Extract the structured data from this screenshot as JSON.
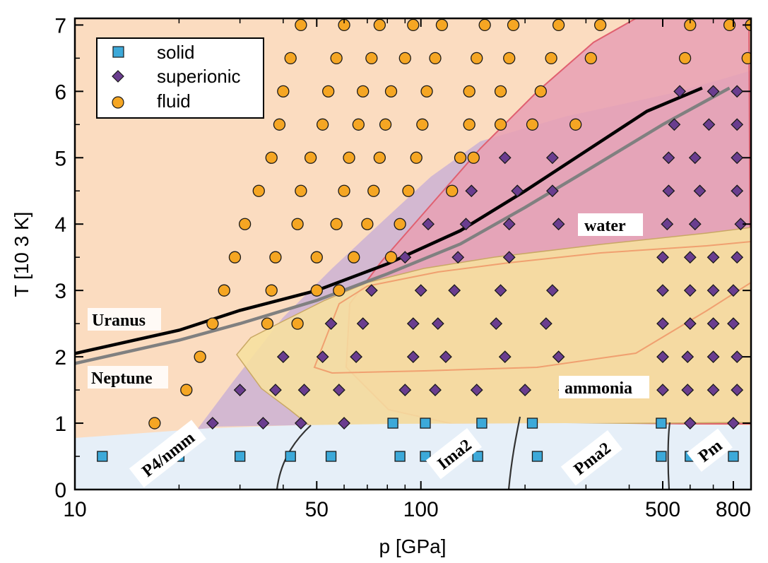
{
  "chart_data": {
    "type": "scatter",
    "xlabel": "p [GPa]",
    "ylabel": "T [10 3 K]",
    "xscale": "log",
    "xlim": [
      10,
      900
    ],
    "ylim": [
      0,
      7.1
    ],
    "x_ticks": [
      10,
      50,
      100,
      500,
      800
    ],
    "x_tick_labels": [
      "10",
      "50",
      "100",
      "500",
      "800"
    ],
    "y_ticks": [
      0,
      1,
      2,
      3,
      4,
      5,
      6,
      7
    ],
    "y_tick_labels": [
      "0",
      "1",
      "2",
      "3",
      "4",
      "5",
      "6",
      "7"
    ],
    "legend": {
      "position": "top-left",
      "entries": [
        "solid",
        "superionic",
        "fluid"
      ]
    },
    "series": [
      {
        "name": "solid",
        "marker": "square",
        "color": "#3da9d9",
        "points": [
          [
            12,
            0.5
          ],
          [
            20,
            0.5
          ],
          [
            30,
            0.5
          ],
          [
            42,
            0.5
          ],
          [
            55,
            0.5
          ],
          [
            87,
            0.5
          ],
          [
            103,
            0.5
          ],
          [
            146,
            0.5
          ],
          [
            217,
            0.5
          ],
          [
            495,
            0.5
          ],
          [
            600,
            0.5
          ],
          [
            800,
            0.5
          ],
          [
            83,
            1.0
          ],
          [
            103,
            1.0
          ],
          [
            150,
            1.0
          ],
          [
            210,
            1.0
          ],
          [
            495,
            1.0
          ]
        ]
      },
      {
        "name": "superionic",
        "marker": "diamond",
        "color": "#6a3d8f",
        "points": [
          [
            25,
            1.0
          ],
          [
            35,
            1.0
          ],
          [
            45,
            1.0
          ],
          [
            60,
            1.0
          ],
          [
            600,
            1.0
          ],
          [
            800,
            1.0
          ],
          [
            30,
            1.5
          ],
          [
            38,
            1.5
          ],
          [
            46,
            1.5
          ],
          [
            58,
            1.5
          ],
          [
            90,
            1.5
          ],
          [
            110,
            1.5
          ],
          [
            145,
            1.5
          ],
          [
            200,
            1.5
          ],
          [
            260,
            1.5
          ],
          [
            500,
            1.5
          ],
          [
            590,
            1.5
          ],
          [
            700,
            1.5
          ],
          [
            820,
            1.5
          ],
          [
            40,
            2.0
          ],
          [
            52,
            2.0
          ],
          [
            65,
            2.0
          ],
          [
            95,
            2.0
          ],
          [
            118,
            2.0
          ],
          [
            175,
            2.0
          ],
          [
            250,
            2.0
          ],
          [
            500,
            2.0
          ],
          [
            590,
            2.0
          ],
          [
            700,
            2.0
          ],
          [
            820,
            2.0
          ],
          [
            55,
            2.5
          ],
          [
            68,
            2.5
          ],
          [
            95,
            2.5
          ],
          [
            112,
            2.5
          ],
          [
            165,
            2.5
          ],
          [
            230,
            2.5
          ],
          [
            500,
            2.5
          ],
          [
            600,
            2.5
          ],
          [
            700,
            2.5
          ],
          [
            800,
            2.5
          ],
          [
            72,
            3.0
          ],
          [
            100,
            3.0
          ],
          [
            125,
            3.0
          ],
          [
            170,
            3.0
          ],
          [
            240,
            3.0
          ],
          [
            500,
            3.0
          ],
          [
            600,
            3.0
          ],
          [
            700,
            3.0
          ],
          [
            800,
            3.0
          ],
          [
            90,
            3.5
          ],
          [
            128,
            3.5
          ],
          [
            180,
            3.5
          ],
          [
            500,
            3.5
          ],
          [
            600,
            3.5
          ],
          [
            700,
            3.5
          ],
          [
            820,
            3.5
          ],
          [
            105,
            4.0
          ],
          [
            135,
            4.0
          ],
          [
            180,
            4.0
          ],
          [
            250,
            4.0
          ],
          [
            515,
            4.0
          ],
          [
            620,
            4.0
          ],
          [
            840,
            4.0
          ],
          [
            140,
            4.5
          ],
          [
            190,
            4.5
          ],
          [
            240,
            4.5
          ],
          [
            520,
            4.5
          ],
          [
            640,
            4.5
          ],
          [
            820,
            4.5
          ],
          [
            175,
            5.0
          ],
          [
            240,
            5.0
          ],
          [
            520,
            5.0
          ],
          [
            620,
            5.0
          ],
          [
            820,
            5.0
          ],
          [
            540,
            5.5
          ],
          [
            680,
            5.5
          ],
          [
            820,
            5.5
          ],
          [
            560,
            6.0
          ],
          [
            700,
            6.0
          ],
          [
            820,
            6.0
          ]
        ]
      },
      {
        "name": "fluid",
        "marker": "circle",
        "color": "#f5a623",
        "points": [
          [
            17,
            1.0
          ],
          [
            21,
            1.5
          ],
          [
            23,
            2.0
          ],
          [
            25,
            2.5
          ],
          [
            36,
            2.5
          ],
          [
            44,
            2.5
          ],
          [
            27,
            3.0
          ],
          [
            37,
            3.0
          ],
          [
            50,
            3.0
          ],
          [
            58,
            3.0
          ],
          [
            29,
            3.5
          ],
          [
            38,
            3.5
          ],
          [
            50,
            3.5
          ],
          [
            64,
            3.5
          ],
          [
            82,
            3.5
          ],
          [
            31,
            4.0
          ],
          [
            44,
            4.0
          ],
          [
            57,
            4.0
          ],
          [
            70,
            4.0
          ],
          [
            87,
            4.0
          ],
          [
            34,
            4.5
          ],
          [
            45,
            4.5
          ],
          [
            60,
            4.5
          ],
          [
            73,
            4.5
          ],
          [
            92,
            4.5
          ],
          [
            123,
            4.5
          ],
          [
            37,
            5.0
          ],
          [
            48,
            5.0
          ],
          [
            62,
            5.0
          ],
          [
            76,
            5.0
          ],
          [
            97,
            5.0
          ],
          [
            130,
            5.0
          ],
          [
            142,
            5.0
          ],
          [
            39,
            5.5
          ],
          [
            52,
            5.5
          ],
          [
            66,
            5.5
          ],
          [
            79,
            5.5
          ],
          [
            101,
            5.5
          ],
          [
            138,
            5.5
          ],
          [
            170,
            5.5
          ],
          [
            210,
            5.5
          ],
          [
            280,
            5.5
          ],
          [
            40,
            6.0
          ],
          [
            54,
            6.0
          ],
          [
            68,
            6.0
          ],
          [
            82,
            6.0
          ],
          [
            104,
            6.0
          ],
          [
            138,
            6.0
          ],
          [
            170,
            6.0
          ],
          [
            222,
            6.0
          ],
          [
            42,
            6.5
          ],
          [
            57,
            6.5
          ],
          [
            72,
            6.5
          ],
          [
            90,
            6.5
          ],
          [
            110,
            6.5
          ],
          [
            145,
            6.5
          ],
          [
            180,
            6.5
          ],
          [
            238,
            6.5
          ],
          [
            310,
            6.5
          ],
          [
            580,
            6.5
          ],
          [
            880,
            6.5
          ],
          [
            45,
            7.0
          ],
          [
            60,
            7.0
          ],
          [
            76,
            7.0
          ],
          [
            95,
            7.0
          ],
          [
            115,
            7.0
          ],
          [
            153,
            7.0
          ],
          [
            185,
            7.0
          ],
          [
            250,
            7.0
          ],
          [
            330,
            7.0
          ],
          [
            600,
            7.0
          ],
          [
            780,
            7.0
          ],
          [
            900,
            7.0
          ]
        ]
      }
    ],
    "lines": [
      {
        "name": "Uranus",
        "color": "#000000",
        "points": [
          [
            10,
            2.05
          ],
          [
            20,
            2.4
          ],
          [
            30,
            2.7
          ],
          [
            50,
            3.0
          ],
          [
            80,
            3.4
          ],
          [
            130,
            3.9
          ],
          [
            200,
            4.5
          ],
          [
            300,
            5.1
          ],
          [
            450,
            5.7
          ],
          [
            650,
            6.05
          ]
        ]
      },
      {
        "name": "Neptune",
        "color": "#808080",
        "points": [
          [
            10,
            1.9
          ],
          [
            20,
            2.25
          ],
          [
            30,
            2.5
          ],
          [
            50,
            2.85
          ],
          [
            80,
            3.25
          ],
          [
            130,
            3.7
          ],
          [
            200,
            4.25
          ],
          [
            300,
            4.8
          ],
          [
            500,
            5.5
          ],
          [
            780,
            6.05
          ]
        ]
      }
    ],
    "annotations": {
      "planets": [
        "Uranus",
        "Neptune"
      ],
      "regions": [
        "water",
        "ammonia"
      ],
      "phases": [
        "P4/nmm",
        "Ima2",
        "Pma2",
        "Pm"
      ]
    },
    "colors": {
      "fluid_region": "#fbdcc0",
      "solid_region": "#e6eff8",
      "superionic_region": "#cbb2d4",
      "water_region": "#e8a0b4",
      "ammonia_region": "#f6e0a0",
      "water_boundary": "#e06070"
    }
  }
}
